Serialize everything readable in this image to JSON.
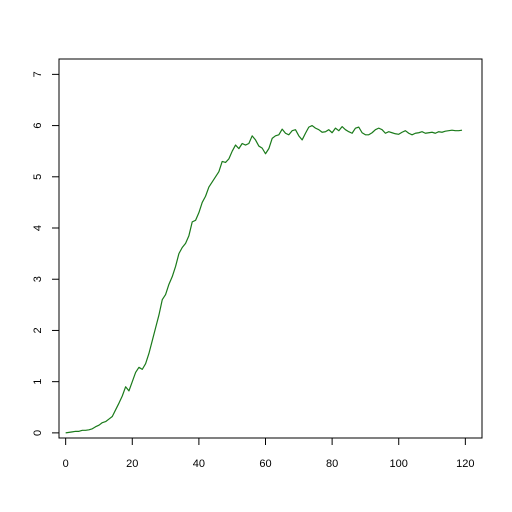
{
  "chart_data": {
    "type": "line",
    "title": "",
    "xlabel": "",
    "ylabel": "",
    "xlim": [
      -2,
      125
    ],
    "ylim": [
      -0.1,
      7.3
    ],
    "xticks": [
      0,
      20,
      40,
      60,
      80,
      100,
      120
    ],
    "yticks": [
      0,
      1,
      2,
      3,
      4,
      5,
      6,
      7
    ],
    "grid": false,
    "legend": "none",
    "line_color": "#1a7a1a",
    "series": [
      {
        "x": [
          0,
          1,
          2,
          3,
          4,
          5,
          6,
          7,
          8,
          9,
          10,
          11,
          12,
          13,
          14,
          15,
          16,
          17,
          18,
          19,
          20,
          21,
          22,
          23,
          24,
          25,
          26,
          27,
          28,
          29,
          30,
          31,
          32,
          33,
          34,
          35,
          36,
          37,
          38,
          39,
          40,
          41,
          42,
          43,
          44,
          45,
          46,
          47,
          48,
          49,
          50,
          51,
          52,
          53,
          54,
          55,
          56,
          57,
          58,
          59,
          60,
          61,
          62,
          63,
          64,
          65,
          66,
          67,
          68,
          69,
          70,
          71,
          72,
          73,
          74,
          75,
          76,
          77,
          78,
          79,
          80,
          81,
          82,
          83,
          84,
          85,
          86,
          87,
          88,
          89,
          90,
          91,
          92,
          93,
          94,
          95,
          96,
          97,
          98,
          99,
          100,
          101,
          102,
          103,
          104,
          105,
          106,
          107,
          108,
          109,
          110,
          111,
          112,
          113,
          114,
          115,
          116,
          117,
          118,
          119
        ],
        "y": [
          0.0,
          0.01,
          0.02,
          0.03,
          0.03,
          0.05,
          0.05,
          0.06,
          0.08,
          0.12,
          0.15,
          0.2,
          0.22,
          0.27,
          0.32,
          0.45,
          0.58,
          0.72,
          0.9,
          0.82,
          1.0,
          1.18,
          1.28,
          1.24,
          1.35,
          1.55,
          1.8,
          2.05,
          2.3,
          2.6,
          2.7,
          2.9,
          3.05,
          3.25,
          3.5,
          3.62,
          3.7,
          3.85,
          4.12,
          4.15,
          4.3,
          4.5,
          4.62,
          4.8,
          4.9,
          5.0,
          5.1,
          5.3,
          5.28,
          5.35,
          5.5,
          5.62,
          5.55,
          5.65,
          5.62,
          5.65,
          5.8,
          5.72,
          5.6,
          5.56,
          5.45,
          5.55,
          5.75,
          5.8,
          5.82,
          5.93,
          5.85,
          5.82,
          5.9,
          5.92,
          5.8,
          5.72,
          5.85,
          5.97,
          6.0,
          5.95,
          5.92,
          5.87,
          5.88,
          5.92,
          5.86,
          5.95,
          5.9,
          5.98,
          5.92,
          5.88,
          5.85,
          5.95,
          5.97,
          5.86,
          5.82,
          5.82,
          5.86,
          5.92,
          5.95,
          5.92,
          5.85,
          5.88,
          5.86,
          5.84,
          5.83,
          5.87,
          5.9,
          5.85,
          5.82,
          5.85,
          5.86,
          5.88,
          5.85,
          5.86,
          5.87,
          5.85,
          5.88,
          5.87,
          5.89,
          5.9,
          5.91,
          5.9,
          5.9,
          5.91
        ]
      }
    ]
  }
}
